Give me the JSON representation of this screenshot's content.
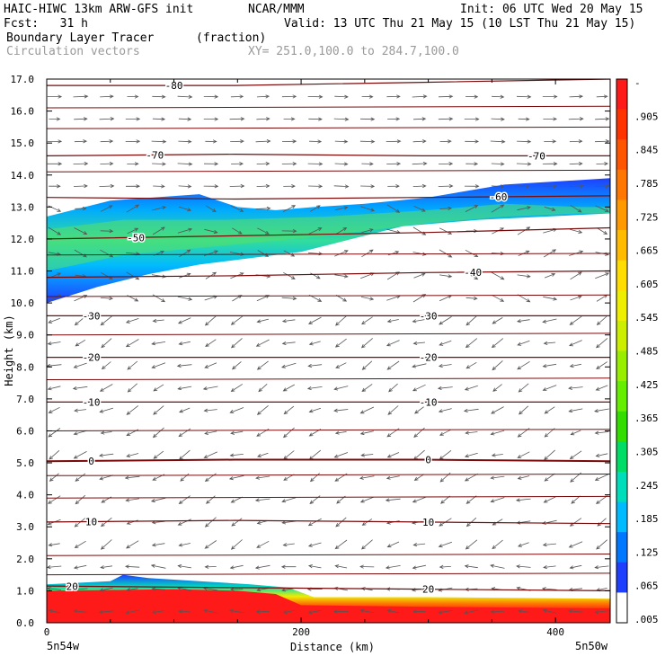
{
  "header": {
    "line1_left": "HAIC-HIWC 13km ARW-GFS init",
    "line1_mid": "NCAR/MMM",
    "line1_right": "Init: 06 UTC Wed 20 May 15",
    "line2_left": "Fcst:   31 h",
    "line2_right": "Valid: 13 UTC Thu 21 May 15 (10 LST Thu 21 May 15)",
    "line3_left": "Boundary Layer Tracer",
    "line3_units": "(fraction)",
    "line4_left": "Circulation vectors",
    "line4_xy": "XY= 251.0,100.0 to 284.7,100.0"
  },
  "endpoints": {
    "left": "5n54w",
    "right": "5n50w"
  },
  "colors": {
    "contour_line": "#7a0a0a",
    "vector": "#555555",
    "tracer_high": "#ff1a1a",
    "tracer_low": "#1f3fff"
  },
  "chart_data": {
    "type": "heatmap",
    "title": "Boundary Layer Tracer",
    "units": "(fraction)",
    "overlay": "Circulation vectors",
    "xlabel": "Distance (km)",
    "ylabel": "Height (km)",
    "xlim": [
      0,
      443
    ],
    "ylim": [
      0,
      17
    ],
    "xticks": [
      0,
      200,
      400
    ],
    "yticks": [
      "0.0",
      "1.0",
      "2.0",
      "3.0",
      "4.0",
      "5.0",
      "6.0",
      "7.0",
      "8.0",
      "9.0",
      "10.0",
      "11.0",
      "12.0",
      "13.0",
      "14.0",
      "15.0",
      "16.0",
      "17.0"
    ],
    "colorbar": {
      "labels": [
        "-",
        ".905",
        ".845",
        ".785",
        ".725",
        ".665",
        ".605",
        ".545",
        ".485",
        ".425",
        ".365",
        ".305",
        ".245",
        ".185",
        ".125",
        ".065",
        ".005"
      ],
      "colors": [
        "#ff1a1a",
        "#ff3300",
        "#ff5500",
        "#ff7700",
        "#ff9900",
        "#ffbb00",
        "#ffdd00",
        "#eeee00",
        "#ccee00",
        "#99ee00",
        "#66ee00",
        "#33dd00",
        "#00dd66",
        "#00ddbb",
        "#00bbff",
        "#0077ff",
        "#1f3fff",
        "#ffffff"
      ]
    },
    "temperature_contours": [
      {
        "label": "-80",
        "label_x": 100,
        "y": [
          16.8,
          16.8,
          16.9,
          17.0
        ]
      },
      {
        "label": "-70",
        "label_x": 85,
        "y2_label_x": 385,
        "label2": "-70",
        "y": [
          14.6,
          14.65,
          14.6,
          14.6
        ]
      },
      {
        "label": "-60",
        "label_x": 355,
        "y": [
          13.3,
          13.25,
          13.3,
          13.35
        ]
      },
      {
        "label": "-50",
        "label_x": 70,
        "y": [
          12.0,
          12.1,
          12.2,
          12.35
        ]
      },
      {
        "label": "-40",
        "label_x": 335,
        "y": [
          10.8,
          10.85,
          10.95,
          11.0
        ]
      },
      {
        "label": "-30",
        "label_x": 35,
        "label2": "-30",
        "y2_label_x": 300,
        "y": [
          9.6,
          9.6,
          9.6,
          9.6
        ]
      },
      {
        "label": "-20",
        "label_x": 35,
        "label2": "-20",
        "y2_label_x": 300,
        "y": [
          8.3,
          8.3,
          8.3,
          8.3
        ]
      },
      {
        "label": "-10",
        "label_x": 35,
        "label2": "-10",
        "y2_label_x": 300,
        "y": [
          6.9,
          6.9,
          6.9,
          6.9
        ]
      },
      {
        "label": "0",
        "label_x": 35,
        "label2": "0",
        "y2_label_x": 300,
        "y": [
          5.05,
          5.1,
          5.1,
          5.05
        ]
      },
      {
        "label": "10",
        "label_x": 35,
        "label2": "10",
        "y2_label_x": 300,
        "y": [
          3.15,
          3.2,
          3.15,
          3.1
        ]
      },
      {
        "label": "20",
        "label_x": 20,
        "label2": "20",
        "y2_label_x": 300,
        "y": [
          1.15,
          1.1,
          1.05,
          1.0
        ]
      }
    ],
    "tracer_layers": {
      "upper_top": [
        [
          0,
          12.7
        ],
        [
          50,
          13.2
        ],
        [
          120,
          13.4
        ],
        [
          150,
          13.0
        ],
        [
          180,
          12.9
        ],
        [
          210,
          13.0
        ],
        [
          250,
          13.1
        ],
        [
          300,
          13.3
        ],
        [
          360,
          13.7
        ],
        [
          443,
          13.9
        ]
      ],
      "upper_bottom": [
        [
          0,
          10.0
        ],
        [
          40,
          10.5
        ],
        [
          80,
          10.9
        ],
        [
          120,
          11.2
        ],
        [
          160,
          11.4
        ],
        [
          200,
          11.6
        ],
        [
          240,
          12.0
        ],
        [
          280,
          12.4
        ],
        [
          340,
          12.6
        ],
        [
          443,
          12.8
        ]
      ],
      "upper_core_top": [
        [
          0,
          12.3
        ],
        [
          60,
          12.6
        ],
        [
          140,
          12.6
        ],
        [
          220,
          12.7
        ],
        [
          300,
          12.9
        ],
        [
          360,
          13.1
        ],
        [
          420,
          13.0
        ]
      ],
      "upper_core_bottom": [
        [
          0,
          11.0
        ],
        [
          60,
          11.5
        ],
        [
          140,
          11.8
        ],
        [
          220,
          12.1
        ],
        [
          300,
          12.5
        ],
        [
          360,
          12.7
        ],
        [
          420,
          12.8
        ]
      ],
      "lower_top": [
        [
          0,
          1.2
        ],
        [
          50,
          1.3
        ],
        [
          60,
          1.5
        ],
        [
          80,
          1.4
        ],
        [
          120,
          1.3
        ],
        [
          160,
          1.2
        ],
        [
          190,
          1.1
        ],
        [
          210,
          0.8
        ],
        [
          300,
          0.8
        ],
        [
          443,
          0.75
        ]
      ],
      "lower_red_top": [
        [
          0,
          1.0
        ],
        [
          100,
          1.05
        ],
        [
          150,
          1.0
        ],
        [
          180,
          0.9
        ],
        [
          200,
          0.55
        ],
        [
          300,
          0.5
        ],
        [
          443,
          0.45
        ]
      ]
    }
  }
}
